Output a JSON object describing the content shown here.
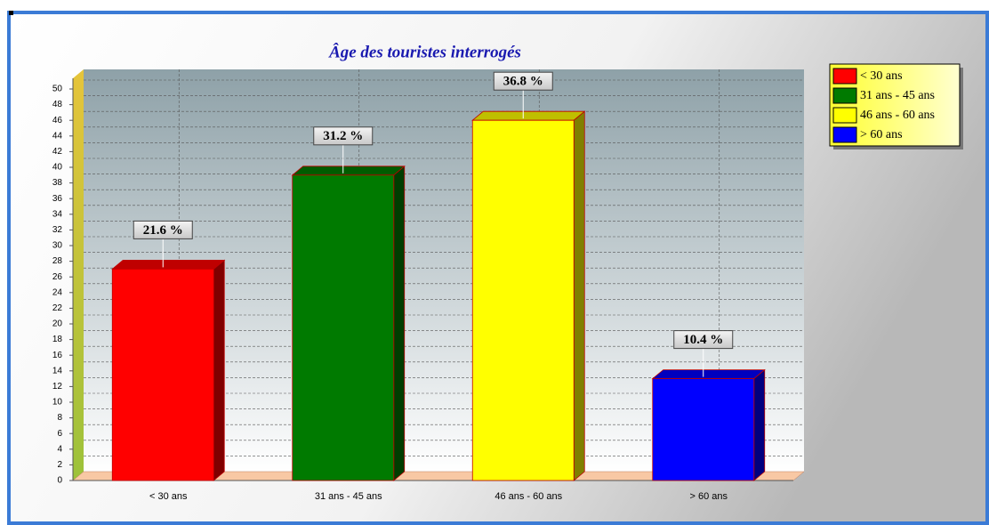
{
  "chart_data": {
    "type": "bar3d",
    "title": "Âge des touristes interrogés",
    "categories": [
      "< 30 ans",
      "31 ans - 45 ans",
      "46 ans - 60 ans",
      "> 60 ans"
    ],
    "values": [
      27,
      39,
      46,
      13
    ],
    "percentages": [
      21.6,
      31.2,
      36.8,
      10.4
    ],
    "percentage_labels": [
      "21.6 %",
      "31.2 %",
      "36.8 %",
      "10.4 %"
    ],
    "colors": [
      "#ff0000",
      "#007a00",
      "#ffff00",
      "#0000ff"
    ],
    "ylim": [
      0,
      50
    ],
    "yticks": [
      0,
      2,
      4,
      6,
      8,
      10,
      12,
      14,
      16,
      18,
      20,
      22,
      24,
      26,
      28,
      30,
      32,
      34,
      36,
      38,
      40,
      42,
      44,
      46,
      48,
      50
    ],
    "grid": true,
    "legend": "top-right"
  }
}
